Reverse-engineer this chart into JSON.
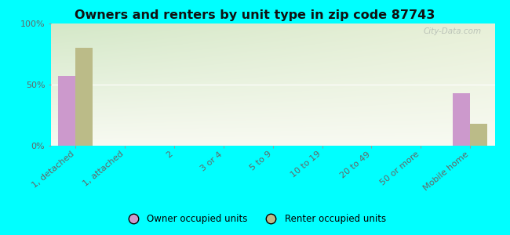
{
  "title": "Owners and renters by unit type in zip code 87743",
  "categories": [
    "1, detached",
    "1, attached",
    "2",
    "3 or 4",
    "5 to 9",
    "10 to 19",
    "20 to 49",
    "50 or more",
    "Mobile home"
  ],
  "owner_values": [
    57,
    0,
    0,
    0,
    0,
    0,
    0,
    0,
    43
  ],
  "renter_values": [
    80,
    0,
    0,
    0,
    0,
    0,
    0,
    0,
    18
  ],
  "owner_color": "#cc99cc",
  "renter_color": "#bbbb88",
  "bg_color": "#00ffff",
  "plot_bg_top_left": "#d4e8c8",
  "plot_bg_top_right": "#e8f0d8",
  "plot_bg_bottom": "#f8faf2",
  "ylabel_ticks": [
    "0%",
    "50%",
    "100%"
  ],
  "ytick_values": [
    0,
    50,
    100
  ],
  "ylim": [
    0,
    100
  ],
  "bar_width": 0.35,
  "watermark": "City-Data.com",
  "legend_owner": "Owner occupied units",
  "legend_renter": "Renter occupied units"
}
